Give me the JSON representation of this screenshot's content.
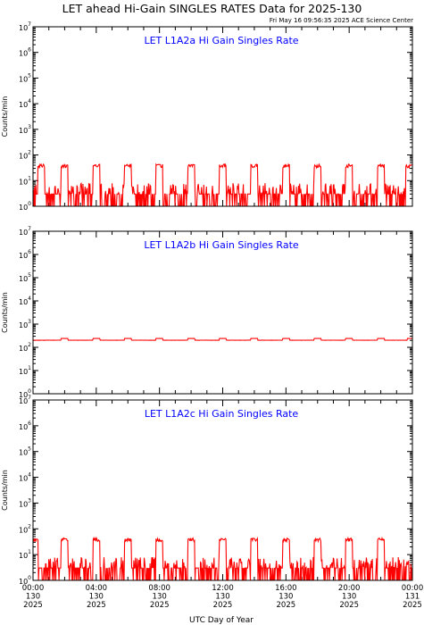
{
  "page": {
    "title": "LET ahead Hi-Gain SINGLES RATES Data for 2025-130",
    "timestamp": "Fri May 16 09:56:35 2025 ACE Science Center",
    "xlabel": "UTC Day of Year"
  },
  "colors": {
    "data": "#ff0000",
    "panel_title": "#0000ff",
    "axes": "#000000",
    "background": "#ffffff"
  },
  "chart_data": [
    {
      "type": "line",
      "title": "LET L1A2a Hi Gain Singles Rate",
      "ylabel": "Counts/min",
      "yscale": "log",
      "ylim": [
        1,
        10000000
      ],
      "xlim": [
        0,
        24
      ],
      "y_tick_exponents": [
        "0",
        "1",
        "2",
        "3",
        "4",
        "5",
        "6",
        "7"
      ],
      "series": [
        {
          "baseline": 3,
          "baseline_max": 8,
          "spike_hours": [
            0.5,
            2.0,
            4.0,
            6.0,
            8.0,
            10.0,
            12.0,
            14.0,
            16.0,
            18.0,
            20.0,
            22.0,
            23.8
          ],
          "spike_value": 40
        }
      ]
    },
    {
      "type": "line",
      "title": "LET L1A2b Hi Gain Singles Rate",
      "ylabel": "Counts/min",
      "yscale": "log",
      "ylim": [
        1,
        10000000
      ],
      "xlim": [
        0,
        24
      ],
      "y_tick_exponents": [
        "0",
        "1",
        "2",
        "3",
        "4",
        "5",
        "6",
        "7"
      ],
      "series": [
        {
          "baseline": 200,
          "baseline_max": 215,
          "spike_hours": [
            2.0,
            4.0,
            6.0,
            8.0,
            10.0,
            12.0,
            14.0,
            16.0,
            18.0,
            20.0,
            22.0,
            23.9
          ],
          "spike_value": 240
        }
      ]
    },
    {
      "type": "line",
      "title": "LET L1A2c Hi Gain Singles Rate",
      "ylabel": "Counts/min",
      "yscale": "log",
      "ylim": [
        1,
        10000000
      ],
      "xlim": [
        0,
        24
      ],
      "y_tick_exponents": [
        "0",
        "1",
        "2",
        "3",
        "4",
        "5",
        "6",
        "7"
      ],
      "series": [
        {
          "baseline": 3,
          "baseline_max": 8,
          "spike_hours": [
            0.1,
            2.0,
            4.0,
            6.0,
            8.0,
            10.0,
            12.0,
            14.0,
            16.0,
            18.0,
            20.0,
            22.0
          ],
          "spike_value": 40
        }
      ]
    }
  ],
  "x_ticks": [
    {
      "time": "00:00",
      "doy": "130",
      "year": "2025"
    },
    {
      "time": "04:00",
      "doy": "130",
      "year": "2025"
    },
    {
      "time": "08:00",
      "doy": "130",
      "year": "2025"
    },
    {
      "time": "12:00",
      "doy": "130",
      "year": "2025"
    },
    {
      "time": "16:00",
      "doy": "130",
      "year": "2025"
    },
    {
      "time": "20:00",
      "doy": "130",
      "year": "2025"
    },
    {
      "time": "00:00",
      "doy": "131",
      "year": "2025"
    }
  ]
}
